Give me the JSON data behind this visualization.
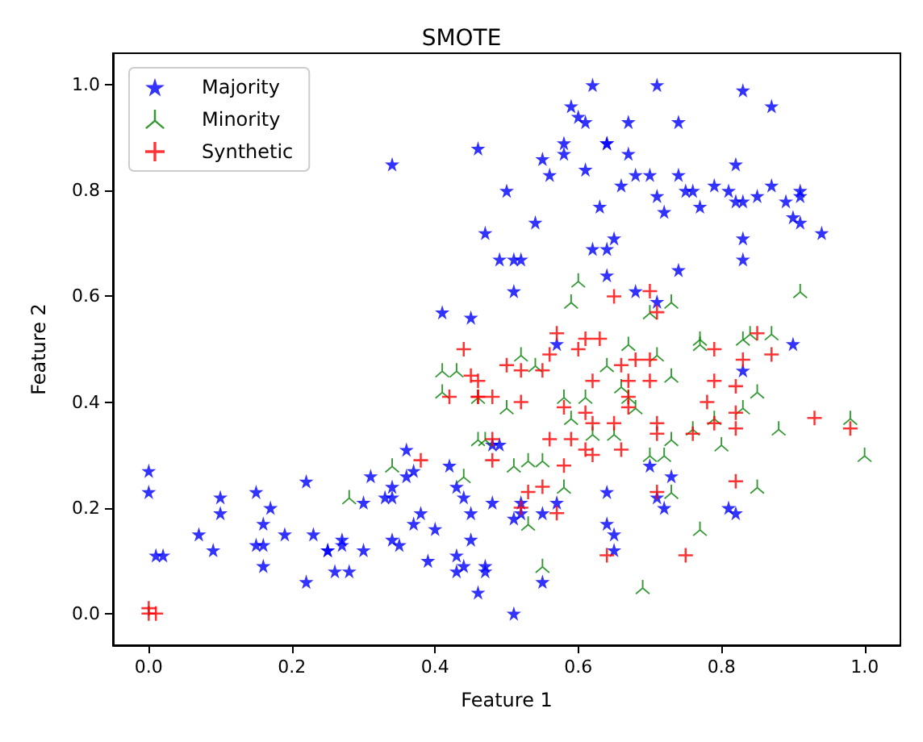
{
  "chart_data": {
    "type": "scatter",
    "title": "SMOTE",
    "xlabel": "Feature 1",
    "ylabel": "Feature 2",
    "legend": "top left",
    "grid": false,
    "xlim": [
      -0.05,
      1.05
    ],
    "ylim": [
      -0.06,
      1.06
    ],
    "xticks": [
      {
        "value": 0,
        "label": "0.0"
      },
      {
        "value": 0.2,
        "label": "0.2"
      },
      {
        "value": 0.4,
        "label": "0.4"
      },
      {
        "value": 0.6,
        "label": "0.6"
      },
      {
        "value": 0.8,
        "label": "0.8"
      },
      {
        "value": 1,
        "label": "1.0"
      }
    ],
    "yticks": [
      {
        "value": 0,
        "label": "0.0"
      },
      {
        "value": 0.2,
        "label": "0.2"
      },
      {
        "value": 0.4,
        "label": "0.4"
      },
      {
        "value": 0.6,
        "label": "0.6"
      },
      {
        "value": 0.8,
        "label": "0.8"
      },
      {
        "value": 1,
        "label": "1.0"
      }
    ],
    "series": [
      {
        "name": "Majority",
        "color": "#0000ff",
        "marker": "star",
        "x": [
          0,
          0,
          0.01,
          0.02,
          0.1,
          0.1,
          0.07,
          0.09,
          0.15,
          0.17,
          0.16,
          0.15,
          0.16,
          0.16,
          0.19,
          0.22,
          0.23,
          0.22,
          0.25,
          0.25,
          0.27,
          0.27,
          0.26,
          0.28,
          0.3,
          0.3,
          0.31,
          0.33,
          0.34,
          0.34,
          0.36,
          0.37,
          0.36,
          0.34,
          0.35,
          0.38,
          0.37,
          0.4,
          0.39,
          0.42,
          0.43,
          0.44,
          0.45,
          0.45,
          0.43,
          0.44,
          0.43,
          0.47,
          0.47,
          0.46,
          0.34,
          0.46,
          0.47,
          0.41,
          0.45,
          0.62,
          0.71,
          0.83,
          0.87,
          0.59,
          0.6,
          0.61,
          0.67,
          0.74,
          0.58,
          0.58,
          0.64,
          0.64,
          0.67,
          0.55,
          0.56,
          0.61,
          0.66,
          0.68,
          0.7,
          0.74,
          0.82,
          0.5,
          0.63,
          0.71,
          0.72,
          0.75,
          0.76,
          0.77,
          0.79,
          0.81,
          0.82,
          0.83,
          0.85,
          0.87,
          0.89,
          0.91,
          0.91,
          0.9,
          0.91,
          0.94,
          0.54,
          0.65,
          0.64,
          0.62,
          0.83,
          0.83,
          0.49,
          0.51,
          0.52,
          0.51,
          0.64,
          0.74,
          0.68,
          0.71,
          0.9,
          0.57,
          0.83,
          0.48,
          0.49,
          0.7,
          0.73,
          0.64,
          0.48,
          0.52,
          0.51,
          0.52,
          0.55,
          0.57,
          0.71,
          0.72,
          0.81,
          0.82,
          0.64,
          0.65,
          0.65,
          0.55,
          0.51
        ],
        "values": [
          0.27,
          0.23,
          0.11,
          0.11,
          0.22,
          0.19,
          0.15,
          0.12,
          0.23,
          0.2,
          0.17,
          0.13,
          0.13,
          0.09,
          0.15,
          0.25,
          0.15,
          0.06,
          0.12,
          0.12,
          0.14,
          0.13,
          0.08,
          0.08,
          0.12,
          0.21,
          0.26,
          0.22,
          0.22,
          0.24,
          0.26,
          0.27,
          0.31,
          0.14,
          0.13,
          0.19,
          0.17,
          0.16,
          0.1,
          0.28,
          0.24,
          0.22,
          0.19,
          0.14,
          0.11,
          0.09,
          0.08,
          0.09,
          0.08,
          0.04,
          0.85,
          0.88,
          0.72,
          0.57,
          0.56,
          1.0,
          1.0,
          0.99,
          0.96,
          0.96,
          0.94,
          0.93,
          0.93,
          0.93,
          0.89,
          0.87,
          0.89,
          0.89,
          0.87,
          0.86,
          0.83,
          0.84,
          0.81,
          0.83,
          0.83,
          0.83,
          0.85,
          0.8,
          0.77,
          0.79,
          0.76,
          0.8,
          0.8,
          0.77,
          0.81,
          0.8,
          0.78,
          0.78,
          0.79,
          0.81,
          0.78,
          0.79,
          0.8,
          0.75,
          0.74,
          0.72,
          0.74,
          0.71,
          0.69,
          0.69,
          0.71,
          0.67,
          0.67,
          0.67,
          0.67,
          0.61,
          0.64,
          0.65,
          0.61,
          0.59,
          0.51,
          0.51,
          0.46,
          0.32,
          0.32,
          0.28,
          0.26,
          0.23,
          0.21,
          0.21,
          0.18,
          0.19,
          0.19,
          0.21,
          0.22,
          0.2,
          0.2,
          0.19,
          0.17,
          0.15,
          0.12,
          0.06,
          0.0
        ]
      },
      {
        "name": "Minority",
        "color": "#008000",
        "marker": "triangle",
        "x": [
          0.41,
          0.43,
          0.41,
          0.46,
          0.34,
          0.28,
          0.44,
          0.46,
          0.52,
          0.54,
          0.64,
          0.67,
          0.71,
          0.77,
          0.73,
          0.66,
          0.61,
          0.58,
          0.67,
          0.5,
          0.59,
          0.68,
          0.85,
          0.83,
          0.79,
          0.76,
          0.73,
          0.65,
          0.62,
          0.47,
          0.88,
          0.98,
          1.0,
          0.8,
          0.72,
          0.7,
          0.51,
          0.53,
          0.55,
          0.58,
          0.73,
          0.85,
          0.53,
          0.77,
          0.55,
          0.69,
          0.6,
          0.59,
          0.73,
          0.7,
          0.91,
          0.84,
          0.87,
          0.77,
          0.83
        ],
        "values": [
          0.46,
          0.46,
          0.42,
          0.41,
          0.28,
          0.22,
          0.26,
          0.33,
          0.49,
          0.47,
          0.47,
          0.51,
          0.49,
          0.51,
          0.45,
          0.43,
          0.41,
          0.41,
          0.41,
          0.39,
          0.37,
          0.39,
          0.42,
          0.39,
          0.37,
          0.35,
          0.33,
          0.34,
          0.34,
          0.33,
          0.35,
          0.37,
          0.3,
          0.32,
          0.3,
          0.3,
          0.28,
          0.29,
          0.29,
          0.24,
          0.23,
          0.24,
          0.17,
          0.16,
          0.09,
          0.05,
          0.63,
          0.59,
          0.59,
          0.57,
          0.61,
          0.53,
          0.53,
          0.52,
          0.52
        ]
      },
      {
        "name": "Synthetic",
        "color": "#ff0000",
        "marker": "cross",
        "x": [
          0,
          0,
          0.01,
          0.44,
          0.45,
          0.46,
          0.42,
          0.46,
          0.38,
          0.5,
          0.52,
          0.55,
          0.6,
          0.56,
          0.66,
          0.68,
          0.7,
          0.79,
          0.87,
          0.83,
          0.62,
          0.67,
          0.7,
          0.79,
          0.82,
          0.46,
          0.48,
          0.52,
          0.67,
          0.61,
          0.58,
          0.62,
          0.65,
          0.67,
          0.78,
          0.82,
          0.79,
          0.82,
          0.71,
          0.71,
          0.76,
          0.93,
          0.98,
          0.48,
          0.48,
          0.56,
          0.59,
          0.61,
          0.62,
          0.66,
          0.58,
          0.55,
          0.53,
          0.52,
          0.57,
          0.71,
          0.82,
          0.64,
          0.75,
          0.65,
          0.7,
          0.71,
          0.57,
          0.61,
          0.63,
          0.85
        ],
        "values": [
          0,
          0.01,
          0,
          0.5,
          0.45,
          0.44,
          0.41,
          0.41,
          0.29,
          0.47,
          0.46,
          0.46,
          0.5,
          0.49,
          0.47,
          0.48,
          0.48,
          0.5,
          0.49,
          0.48,
          0.44,
          0.44,
          0.44,
          0.44,
          0.43,
          0.41,
          0.41,
          0.4,
          0.41,
          0.38,
          0.39,
          0.36,
          0.36,
          0.39,
          0.4,
          0.38,
          0.36,
          0.35,
          0.36,
          0.34,
          0.34,
          0.37,
          0.35,
          0.33,
          0.29,
          0.33,
          0.33,
          0.31,
          0.3,
          0.31,
          0.28,
          0.24,
          0.23,
          0.2,
          0.19,
          0.23,
          0.25,
          0.11,
          0.11,
          0.6,
          0.61,
          0.57,
          0.53,
          0.52,
          0.52,
          0.53
        ]
      }
    ]
  }
}
